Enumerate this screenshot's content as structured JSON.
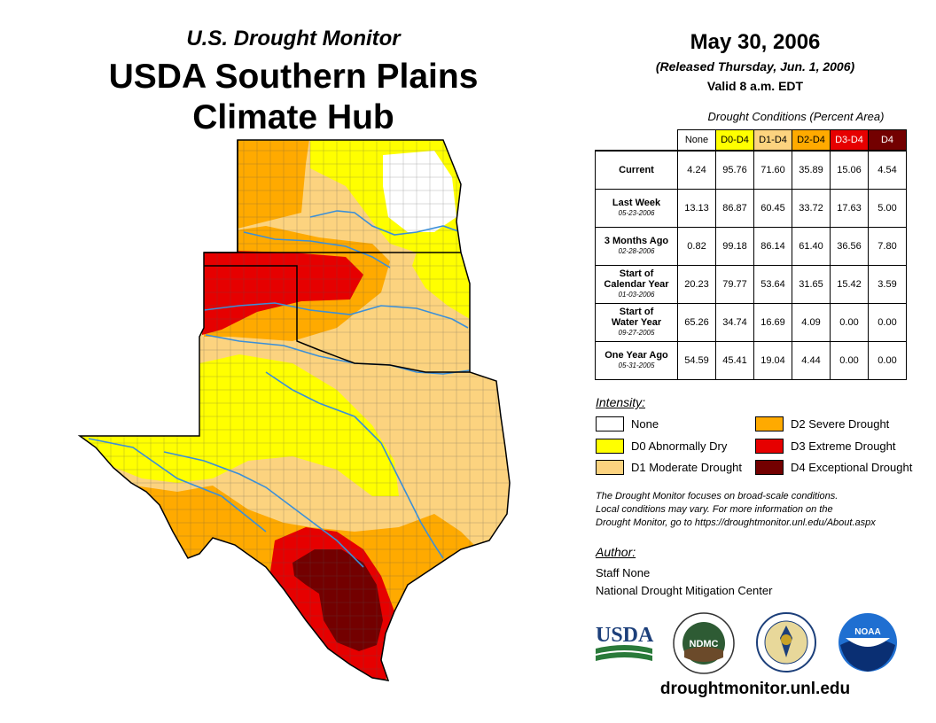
{
  "header": {
    "subtitle": "U.S. Drought Monitor",
    "title_line1": "USDA Southern Plains",
    "title_line2": "Climate Hub"
  },
  "date_block": {
    "date": "May 30, 2006",
    "released": "(Released Thursday, Jun. 1, 2006)",
    "valid": "Valid 8 a.m. EDT"
  },
  "table": {
    "caption": "Drought Conditions (Percent Area)",
    "columns": [
      "None",
      "D0-D4",
      "D1-D4",
      "D2-D4",
      "D3-D4",
      "D4"
    ],
    "column_colors": [
      "#ffffff",
      "#ffff00",
      "#fcd37f",
      "#ffaa00",
      "#e60000",
      "#730000"
    ],
    "rows": [
      {
        "label": "Current",
        "label2": "",
        "sub": "",
        "values": [
          "4.24",
          "95.76",
          "71.60",
          "35.89",
          "15.06",
          "4.54"
        ]
      },
      {
        "label": "Last Week",
        "label2": "",
        "sub": "05-23-2006",
        "values": [
          "13.13",
          "86.87",
          "60.45",
          "33.72",
          "17.63",
          "5.00"
        ]
      },
      {
        "label": "3 Months Ago",
        "label2": "",
        "sub": "02-28-2006",
        "values": [
          "0.82",
          "99.18",
          "86.14",
          "61.40",
          "36.56",
          "7.80"
        ]
      },
      {
        "label": "Start of",
        "label2": "Calendar Year",
        "sub": "01-03-2006",
        "values": [
          "20.23",
          "79.77",
          "53.64",
          "31.65",
          "15.42",
          "3.59"
        ]
      },
      {
        "label": "Start of",
        "label2": "Water Year",
        "sub": "09-27-2005",
        "values": [
          "65.26",
          "34.74",
          "16.69",
          "4.09",
          "0.00",
          "0.00"
        ]
      },
      {
        "label": "One Year Ago",
        "label2": "",
        "sub": "05-31-2005",
        "values": [
          "54.59",
          "45.41",
          "19.04",
          "4.44",
          "0.00",
          "0.00"
        ]
      }
    ]
  },
  "legend": {
    "title": "Intensity:",
    "items": [
      {
        "label": "None",
        "color": "#ffffff"
      },
      {
        "label": "D0 Abnormally Dry",
        "color": "#ffff00"
      },
      {
        "label": "D1 Moderate Drought",
        "color": "#fcd37f"
      },
      {
        "label": "D2 Severe Drought",
        "color": "#ffaa00"
      },
      {
        "label": "D3 Extreme Drought",
        "color": "#e60000"
      },
      {
        "label": "D4 Exceptional Drought",
        "color": "#730000"
      }
    ]
  },
  "note": {
    "line1": "The Drought Monitor focuses on broad-scale conditions.",
    "line2": "Local conditions may vary. For more information on the",
    "line3": "Drought Monitor, go to https://droughtmonitor.unl.edu/About.aspx"
  },
  "author": {
    "title": "Author:",
    "name": "Staff None",
    "org": "National Drought Mitigation Center"
  },
  "logos": {
    "usda": "USDA",
    "ndmc": "NDMC",
    "noaa": "NOAA"
  },
  "footer_url": "droughtmonitor.unl.edu",
  "map_colors": {
    "none": "#ffffff",
    "d0": "#ffff00",
    "d1": "#fcd37f",
    "d2": "#ffaa00",
    "d3": "#e60000",
    "d4": "#730000",
    "river": "#3b8fd8"
  }
}
